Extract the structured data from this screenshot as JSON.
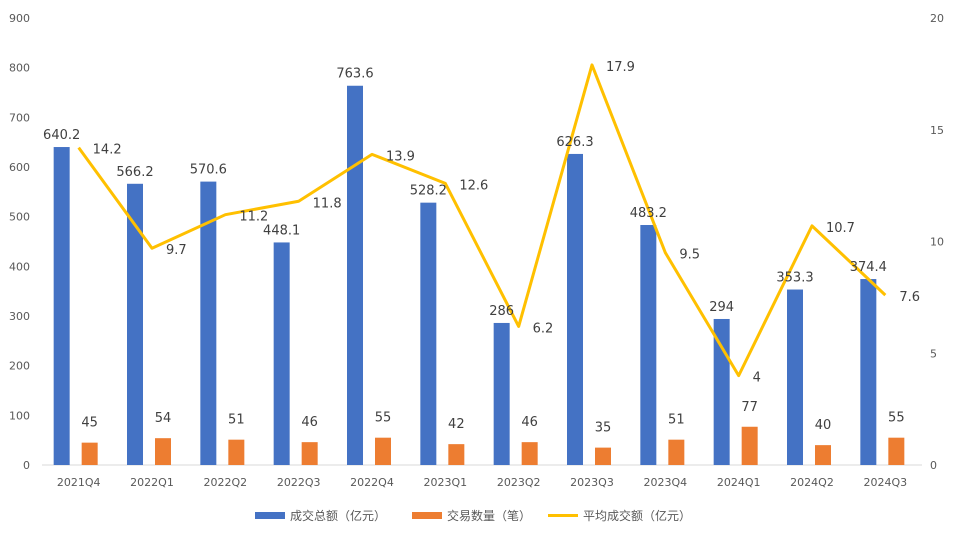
{
  "chart_data": {
    "type": "bar",
    "categories": [
      "2021Q4",
      "2022Q1",
      "2022Q2",
      "2022Q3",
      "2022Q4",
      "2023Q1",
      "2023Q2",
      "2023Q3",
      "2023Q4",
      "2024Q1",
      "2024Q2",
      "2024Q3"
    ],
    "series": [
      {
        "name": "成交总额（亿元）",
        "type": "bar",
        "axis": "left",
        "color": "#4472C4",
        "values": [
          640.2,
          566.2,
          570.6,
          448.1,
          763.6,
          528.2,
          286,
          626.3,
          483.2,
          294,
          353.3,
          374.4
        ]
      },
      {
        "name": "交易数量（笔）",
        "type": "bar",
        "axis": "left",
        "color": "#ED7D31",
        "values": [
          45,
          54,
          51,
          46,
          55,
          42,
          46,
          35,
          51,
          77,
          40,
          55
        ]
      },
      {
        "name": "平均成交额（亿元）",
        "type": "line",
        "axis": "right",
        "color": "#FFC000",
        "values": [
          14.2,
          9.7,
          11.2,
          11.8,
          13.9,
          12.6,
          6.2,
          17.9,
          9.5,
          4,
          10.7,
          7.6
        ]
      }
    ],
    "y_left": {
      "min": 0,
      "max": 900,
      "ticks": [
        "0",
        "100",
        "200",
        "300",
        "400",
        "500",
        "600",
        "700",
        "800",
        "900"
      ]
    },
    "y_right": {
      "min": 0,
      "max": 20,
      "ticks": [
        "0",
        "5",
        "10",
        "15",
        "20"
      ]
    },
    "grid": false,
    "legend": "bottom",
    "title": "",
    "xlabel": "",
    "ylabel": ""
  }
}
